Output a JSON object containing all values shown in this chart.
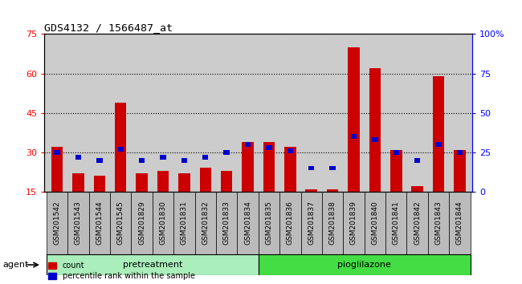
{
  "title": "GDS4132 / 1566487_at",
  "samples": [
    "GSM201542",
    "GSM201543",
    "GSM201544",
    "GSM201545",
    "GSM201829",
    "GSM201830",
    "GSM201831",
    "GSM201832",
    "GSM201833",
    "GSM201834",
    "GSM201835",
    "GSM201836",
    "GSM201837",
    "GSM201838",
    "GSM201839",
    "GSM201840",
    "GSM201841",
    "GSM201842",
    "GSM201843",
    "GSM201844"
  ],
  "count": [
    32,
    22,
    21,
    49,
    22,
    23,
    22,
    24,
    23,
    34,
    34,
    32,
    16,
    16,
    70,
    62,
    31,
    17,
    59,
    31
  ],
  "percentile": [
    25,
    22,
    20,
    27,
    20,
    22,
    20,
    22,
    25,
    30,
    28,
    26,
    15,
    15,
    35,
    33,
    25,
    20,
    30,
    25
  ],
  "pretreatment_count": 10,
  "pioglilazone_count": 10,
  "ylim_left": [
    15,
    75
  ],
  "ylim_right": [
    0,
    100
  ],
  "yticks_left": [
    15,
    30,
    45,
    60,
    75
  ],
  "yticks_right": [
    0,
    25,
    50,
    75,
    100
  ],
  "ytick_right_labels": [
    "0",
    "25",
    "50",
    "75",
    "100%"
  ],
  "bar_color": "#cc0000",
  "percentile_color": "#0000cc",
  "plot_bg_color": "#cccccc",
  "xtick_bg_color": "#bbbbbb",
  "pre_color": "#aaeebb",
  "pio_color": "#44dd44",
  "bar_width": 0.55,
  "perc_bar_width": 0.28,
  "perc_bar_height": 3.0
}
